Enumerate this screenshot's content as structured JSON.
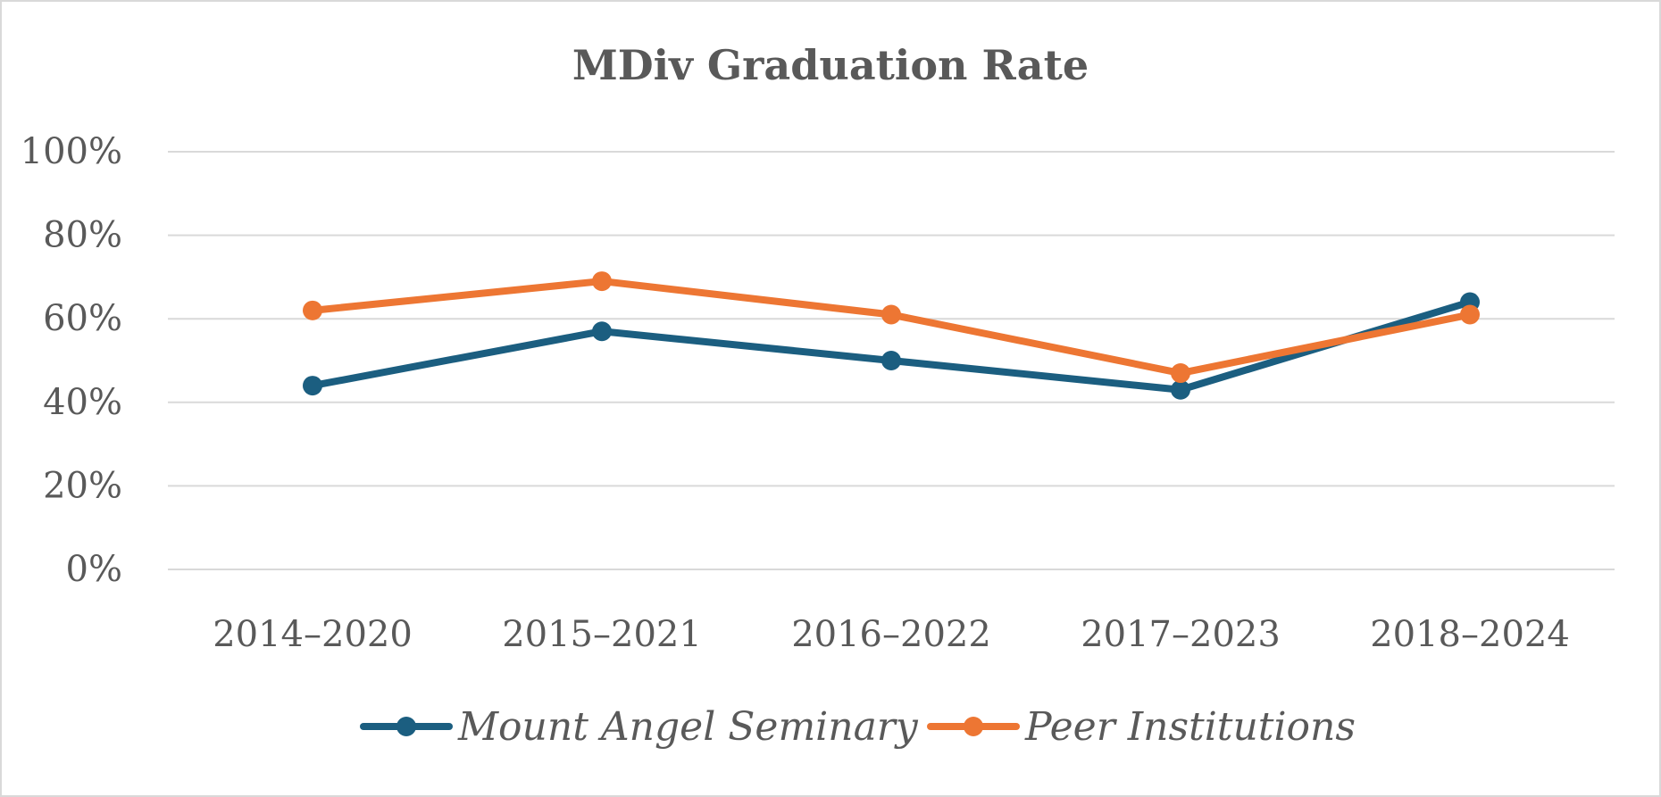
{
  "chart_data": {
    "type": "line",
    "title": "MDiv Graduation Rate",
    "xlabel": "",
    "ylabel": "",
    "categories": [
      "2014–2020",
      "2015–2021",
      "2016–2022",
      "2017–2023",
      "2018–2024"
    ],
    "y_ticks": [
      "0%",
      "20%",
      "40%",
      "60%",
      "80%",
      "100%"
    ],
    "ylim": [
      0,
      100
    ],
    "grid": true,
    "legend_position": "bottom",
    "series": [
      {
        "name": "Mount Angel Seminary",
        "color": "#1b5e80",
        "values": [
          44,
          57,
          50,
          43,
          64
        ]
      },
      {
        "name": "Peer Institutions",
        "color": "#ed7633",
        "values": [
          62,
          69,
          61,
          47,
          61
        ]
      }
    ]
  }
}
